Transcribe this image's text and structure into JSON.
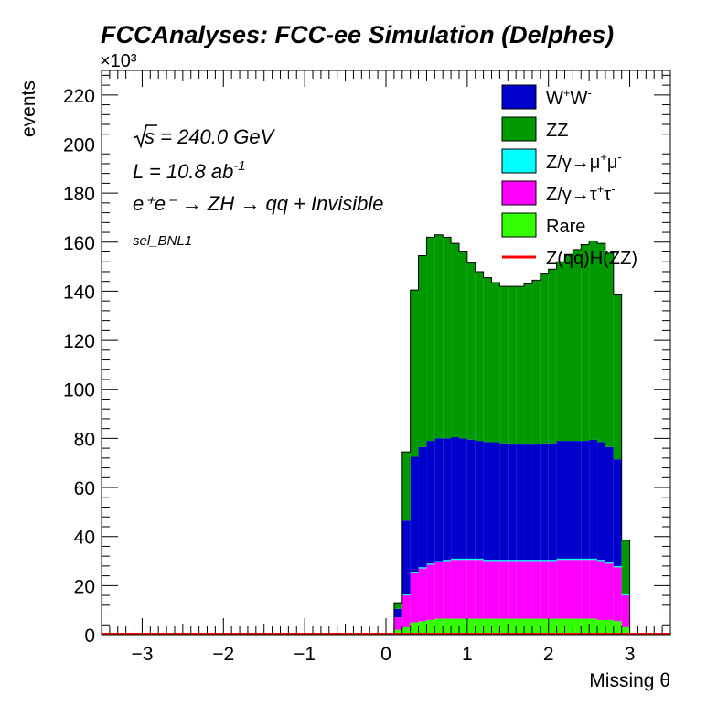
{
  "chart_data": {
    "type": "bar",
    "title": "FCCAnalyses: FCC-ee Simulation (Delphes)",
    "xlabel": "Missing θ",
    "ylabel": "events",
    "y_multiplier": "×10³",
    "xlim": [
      -3.5,
      3.5
    ],
    "ylim": [
      0,
      230
    ],
    "grid": false,
    "legend_position": "top-right",
    "x_ticks": [
      "−3",
      "−2",
      "−1",
      "0",
      "1",
      "2",
      "3"
    ],
    "y_ticks": [
      "0",
      "20",
      "40",
      "60",
      "80",
      "100",
      "120",
      "140",
      "160",
      "180",
      "200",
      "220"
    ],
    "stacked": true,
    "bins": {
      "low_edges": [
        0.1,
        0.2,
        0.3,
        0.4,
        0.5,
        0.6,
        0.7,
        0.8,
        0.9,
        1.0,
        1.1,
        1.2,
        1.3,
        1.4,
        1.5,
        1.6,
        1.7,
        1.8,
        1.9,
        2.0,
        2.1,
        2.2,
        2.3,
        2.4,
        2.5,
        2.6,
        2.7,
        2.8,
        2.9,
        3.0
      ],
      "width": 0.1
    },
    "series": [
      {
        "name": "Rare",
        "color": "#33ff00",
        "values": [
          2,
          3,
          5,
          5.5,
          6,
          6.5,
          6.5,
          6.5,
          6.5,
          6.5,
          6.5,
          6.5,
          6.5,
          6.5,
          6.5,
          6.5,
          6.5,
          6.5,
          6.5,
          6.5,
          6.5,
          6.5,
          6.5,
          6.5,
          6.5,
          6,
          6,
          5.5,
          3,
          0
        ]
      },
      {
        "name": "Z/γ→τ⁺τ⁻",
        "color": "#ff00ff",
        "values": [
          5,
          13,
          20,
          21.5,
          22.5,
          23,
          23.5,
          24,
          24,
          24,
          24,
          23.5,
          23.5,
          23.5,
          23.5,
          23.5,
          23.5,
          23.5,
          23.5,
          23.5,
          24,
          24,
          24,
          24,
          24,
          24,
          23,
          22,
          13,
          0
        ]
      },
      {
        "name": "Z/γ→μ⁺μ⁻",
        "color": "#00ffff",
        "values": [
          0,
          0.5,
          0.5,
          0.5,
          0.5,
          0.5,
          0.5,
          0.5,
          0.5,
          0.5,
          0.5,
          0.5,
          0.5,
          0.5,
          0.5,
          0.5,
          0.5,
          0.5,
          0.5,
          0.5,
          0.5,
          0.5,
          0.5,
          0.5,
          0.5,
          0.5,
          0.5,
          0.5,
          0.5,
          0
        ]
      },
      {
        "name": "W⁺W⁻",
        "color": "#0000cc",
        "values": [
          3.5,
          30,
          47,
          49,
          50,
          50,
          49.5,
          49.5,
          49,
          48.5,
          48,
          48,
          48,
          47.5,
          47,
          47,
          47,
          47,
          47.5,
          47.5,
          48,
          48,
          48,
          48,
          48.5,
          48,
          47,
          43.5,
          0,
          0
        ]
      },
      {
        "name": "ZZ",
        "color": "#009900",
        "values": [
          2.5,
          28,
          68,
          78,
          83,
          83,
          82,
          79,
          76,
          72,
          69,
          67,
          65,
          64,
          64.5,
          64.5,
          65.5,
          67,
          69,
          71,
          73,
          76,
          78,
          80,
          81,
          81,
          79,
          67,
          22,
          0
        ]
      },
      {
        "name": "Z(qq)H(ZZ)",
        "color": "#ff0000",
        "style": "line",
        "values": [
          0,
          0,
          0,
          0,
          0,
          0,
          0,
          0,
          0,
          0,
          0,
          0,
          0,
          0,
          0,
          0,
          0,
          0,
          0,
          0,
          0,
          0,
          0,
          0,
          0,
          0,
          0,
          0,
          0,
          0
        ]
      }
    ],
    "legend": [
      {
        "label_html": "W<tspan dy=\"-8\" font-size=\"13\">+</tspan><tspan dy=\"8\">W</tspan><tspan dy=\"-8\" font-size=\"13\">-</tspan>",
        "color": "#0000cc",
        "kind": "box"
      },
      {
        "label_html": "ZZ",
        "color": "#009900",
        "kind": "box"
      },
      {
        "label_html": "Z/γ→μ<tspan dy=\"-8\" font-size=\"13\">+</tspan><tspan dy=\"8\">μ</tspan><tspan dy=\"-8\" font-size=\"13\">-</tspan>",
        "color": "#00ffff",
        "kind": "box"
      },
      {
        "label_html": "Z/γ→τ<tspan dy=\"-8\" font-size=\"13\">+</tspan><tspan dy=\"8\">τ</tspan><tspan dy=\"-8\" font-size=\"13\">-</tspan>",
        "color": "#ff00ff",
        "kind": "box"
      },
      {
        "label_html": "Rare",
        "color": "#33ff00",
        "kind": "box"
      },
      {
        "label_html": "Z(qq)H(ZZ)",
        "color": "#ff0000",
        "kind": "line"
      }
    ],
    "annotations": {
      "sqrt_s": "s = 240.0 GeV",
      "lumi": "L = 10.8 ab",
      "lumi_exp": "-1",
      "process": "e⁺e⁻ → ZH → qq + Invisible",
      "selection": "sel_BNL1"
    }
  }
}
